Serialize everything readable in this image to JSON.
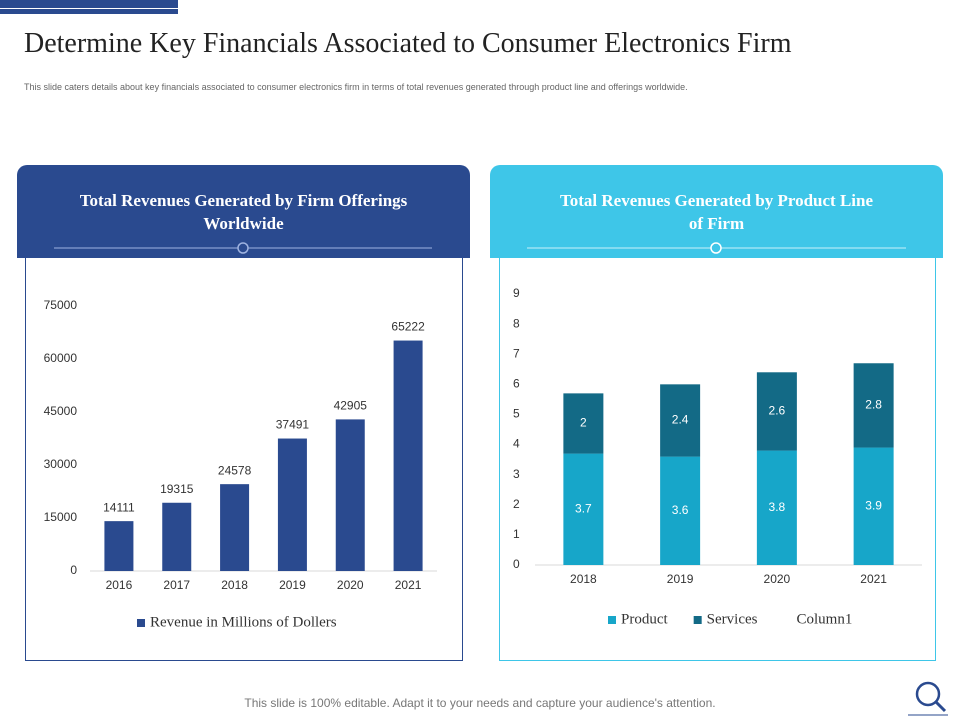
{
  "title": "Determine Key Financials Associated to Consumer Electronics Firm",
  "subtitle": "This slide caters details about key financials associated to consumer electronics firm in terms of total revenues generated through product line and offerings worldwide.",
  "footer": "This slide is 100% editable. Adapt it to your needs and capture your audience's attention.",
  "chart_data": [
    {
      "type": "bar",
      "title": "Total Revenues Generated by Firm Offerings Worldwide",
      "categories": [
        "2016",
        "2017",
        "2018",
        "2019",
        "2020",
        "2021"
      ],
      "series": [
        {
          "name": "Revenue in Millions of Dollers",
          "color": "#2a4a8f",
          "values": [
            14111,
            19315,
            24578,
            37491,
            42905,
            65222
          ]
        }
      ],
      "ylim": [
        0,
        75000
      ],
      "yticks": [
        0,
        15000,
        30000,
        45000,
        60000,
        75000
      ]
    },
    {
      "type": "stacked_bar",
      "title": "Total Revenues Generated by Product Line of Firm",
      "categories": [
        "2018",
        "2019",
        "2020",
        "2021"
      ],
      "series": [
        {
          "name": "Product",
          "color": "#17a6c9",
          "values": [
            3.7,
            3.6,
            3.8,
            3.9
          ]
        },
        {
          "name": "Services",
          "color": "#136a86",
          "values": [
            2,
            2.4,
            2.6,
            2.8
          ]
        },
        {
          "name": "Column1",
          "values": [
            null,
            null,
            null,
            null
          ]
        }
      ],
      "ylim": [
        0,
        9
      ],
      "yticks": [
        0,
        1,
        2,
        3,
        4,
        5,
        6,
        7,
        8,
        9
      ]
    }
  ]
}
